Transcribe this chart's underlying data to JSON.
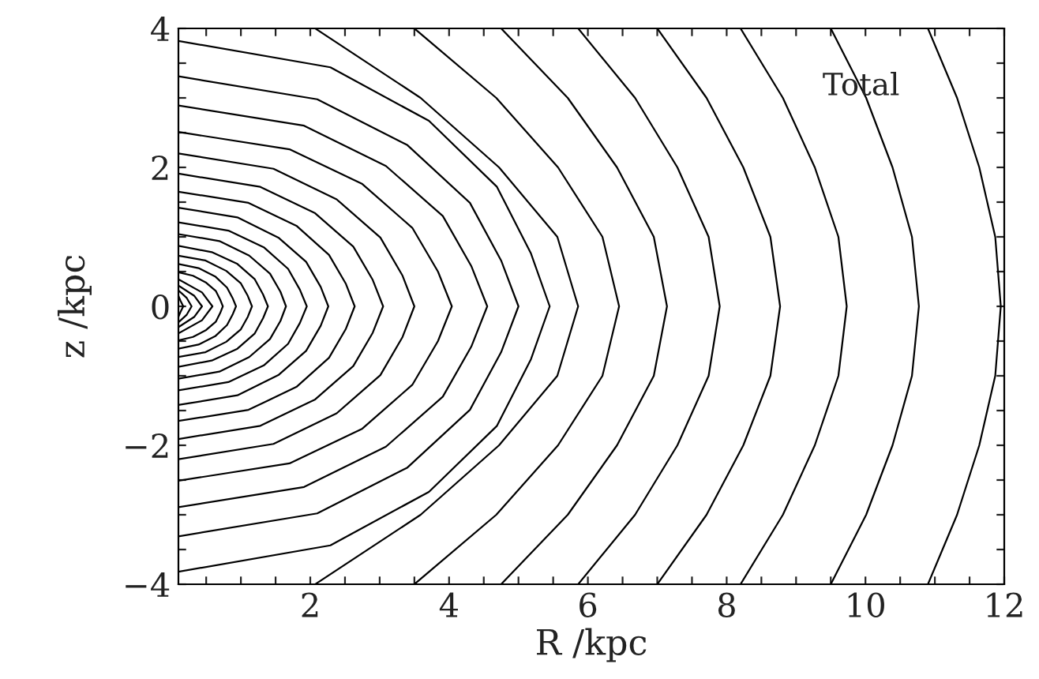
{
  "chart_data": {
    "type": "line",
    "xlabel": "R /kpc",
    "ylabel": "z /kpc",
    "annotations": [
      "Total"
    ],
    "xlim": [
      0.1,
      12
    ],
    "ylim": [
      -4,
      4
    ],
    "xticks": [
      {
        "value": 0.5,
        "label": null
      },
      {
        "value": 1,
        "label": null
      },
      {
        "value": 1.5,
        "label": null
      },
      2,
      {
        "value": 2.5,
        "label": null
      },
      {
        "value": 3,
        "label": null
      },
      {
        "value": 3.5,
        "label": null
      },
      4,
      {
        "value": 4.5,
        "label": null
      },
      {
        "value": 5,
        "label": null
      },
      {
        "value": 5.5,
        "label": null
      },
      6,
      {
        "value": 6.5,
        "label": null
      },
      {
        "value": 7,
        "label": null
      },
      {
        "value": 7.5,
        "label": null
      },
      8,
      {
        "value": 8.5,
        "label": null
      },
      {
        "value": 9,
        "label": null
      },
      {
        "value": 9.5,
        "label": null
      },
      10,
      {
        "value": 10.5,
        "label": null
      },
      {
        "value": 11,
        "label": null
      },
      {
        "value": 11.5,
        "label": null
      },
      12
    ],
    "yticks": [
      {
        "value": -4,
        "label": "−4"
      },
      {
        "value": -3.5,
        "label": null
      },
      {
        "value": -3,
        "label": null
      },
      {
        "value": -2.5,
        "label": null
      },
      {
        "value": -2,
        "label": "−2"
      },
      {
        "value": -1.5,
        "label": null
      },
      {
        "value": -1,
        "label": null
      },
      {
        "value": -0.5,
        "label": null
      },
      0,
      {
        "value": 0.5,
        "label": null
      },
      {
        "value": 1,
        "label": null
      },
      {
        "value": 1.5,
        "label": null
      },
      2,
      {
        "value": 2.5,
        "label": null
      },
      {
        "value": 3,
        "label": null
      },
      {
        "value": 3.5,
        "label": null
      },
      4
    ],
    "grid": false,
    "legend": false,
    "marker": "none",
    "line_style": "solid",
    "series": [
      {
        "color": "#000000",
        "x": [
          2.07,
          3.59,
          4.72,
          5.56,
          5.86,
          5.56,
          4.72,
          3.59,
          2.07
        ],
        "values": [
          4,
          3,
          2,
          1,
          0,
          -1,
          -2,
          -3,
          -4
        ]
      },
      {
        "color": "#000000",
        "x": [
          3.5,
          4.68,
          5.57,
          6.21,
          6.45,
          6.21,
          5.57,
          4.68,
          3.5
        ],
        "values": [
          4,
          3,
          2,
          1,
          0,
          -1,
          -2,
          -3,
          -4
        ]
      },
      {
        "color": "#000000",
        "x": [
          4.75,
          5.71,
          6.42,
          6.95,
          7.14,
          6.95,
          6.42,
          5.71,
          4.75
        ],
        "values": [
          4,
          3,
          2,
          1,
          0,
          -1,
          -2,
          -3,
          -4
        ]
      },
      {
        "color": "#000000",
        "x": [
          5.86,
          6.68,
          7.29,
          7.74,
          7.9,
          7.74,
          7.29,
          6.68,
          5.86
        ],
        "values": [
          4,
          3,
          2,
          1,
          0,
          -1,
          -2,
          -3,
          -4
        ]
      },
      {
        "color": "#000000",
        "x": [
          7.0,
          7.71,
          8.24,
          8.63,
          8.77,
          8.63,
          8.24,
          7.71,
          7.0
        ],
        "values": [
          4,
          3,
          2,
          1,
          0,
          -1,
          -2,
          -3,
          -4
        ]
      },
      {
        "color": "#000000",
        "x": [
          8.2,
          8.81,
          9.27,
          9.61,
          9.73,
          9.61,
          9.27,
          8.81,
          8.2
        ],
        "values": [
          4,
          3,
          2,
          1,
          0,
          -1,
          -2,
          -3,
          -4
        ]
      },
      {
        "color": "#000000",
        "x": [
          9.5,
          10.01,
          10.39,
          10.67,
          10.77,
          10.67,
          10.39,
          10.01,
          9.5
        ],
        "values": [
          4,
          3,
          2,
          1,
          0,
          -1,
          -2,
          -3,
          -4
        ]
      },
      {
        "color": "#000000",
        "x": [
          10.9,
          11.32,
          11.64,
          11.87,
          11.95,
          11.87,
          11.64,
          11.32,
          10.9
        ],
        "values": [
          4,
          3,
          2,
          1,
          0,
          -1,
          -2,
          -3,
          -4
        ]
      },
      {
        "color": "#000000",
        "x": [
          0.1,
          2.29,
          3.71,
          4.69,
          5.18,
          5.45,
          5.18,
          4.69,
          3.71,
          2.29,
          0.1
        ],
        "values": [
          3.82,
          3.44,
          2.67,
          1.72,
          0.76,
          0,
          -0.76,
          -1.72,
          -2.67,
          -3.44,
          -3.82
        ]
      },
      {
        "color": "#000000",
        "x": [
          0.1,
          2.1,
          3.4,
          4.3,
          4.75,
          5.0,
          4.75,
          4.3,
          3.4,
          2.1,
          0.1
        ],
        "values": [
          3.31,
          2.98,
          2.32,
          1.49,
          0.66,
          0,
          -0.66,
          -1.49,
          -2.32,
          -2.98,
          -3.31
        ]
      },
      {
        "color": "#000000",
        "x": [
          0.1,
          1.91,
          3.09,
          3.91,
          4.32,
          4.55,
          4.32,
          3.91,
          3.09,
          1.91,
          0.1
        ],
        "values": [
          2.89,
          2.6,
          2.02,
          1.3,
          0.58,
          0,
          -0.58,
          -1.3,
          -2.02,
          -2.6,
          -2.89
        ]
      },
      {
        "color": "#000000",
        "x": [
          0.1,
          1.7,
          2.75,
          3.47,
          3.84,
          4.04,
          3.84,
          3.47,
          2.75,
          1.7,
          0.1
        ],
        "values": [
          2.51,
          2.26,
          1.76,
          1.13,
          0.5,
          0,
          -0.5,
          -1.13,
          -1.76,
          -2.26,
          -2.51
        ]
      },
      {
        "color": "#000000",
        "x": [
          0.1,
          1.47,
          2.38,
          3.01,
          3.33,
          3.5,
          3.33,
          3.01,
          2.38,
          1.47,
          0.1
        ],
        "values": [
          2.2,
          1.98,
          1.54,
          0.99,
          0.44,
          0,
          -0.44,
          -0.99,
          -1.54,
          -1.98,
          -2.2
        ]
      },
      {
        "color": "#000000",
        "x": [
          0.1,
          1.28,
          2.07,
          2.62,
          2.9,
          3.05,
          2.9,
          2.62,
          2.07,
          1.28,
          0.1
        ],
        "values": [
          1.91,
          1.72,
          1.34,
          0.86,
          0.38,
          0,
          -0.38,
          -0.86,
          -1.34,
          -1.72,
          -1.91
        ]
      },
      {
        "color": "#000000",
        "x": [
          0.1,
          1.11,
          1.8,
          2.27,
          2.51,
          2.64,
          2.51,
          2.27,
          1.8,
          1.11,
          0.1
        ],
        "values": [
          1.65,
          1.49,
          1.16,
          0.74,
          0.33,
          0,
          -0.33,
          -0.74,
          -1.16,
          -1.49,
          -1.65
        ]
      },
      {
        "color": "#000000",
        "x": [
          0.1,
          0.95,
          1.54,
          1.94,
          2.15,
          2.26,
          2.15,
          1.94,
          1.54,
          0.95,
          0.1
        ],
        "values": [
          1.42,
          1.28,
          0.99,
          0.64,
          0.28,
          0,
          -0.28,
          -0.64,
          -0.99,
          -1.28,
          -1.42
        ]
      },
      {
        "color": "#000000",
        "x": [
          0.1,
          0.82,
          1.33,
          1.68,
          1.85,
          1.95,
          1.85,
          1.68,
          1.33,
          0.82,
          0.1
        ],
        "values": [
          1.21,
          1.09,
          0.85,
          0.54,
          0.24,
          0,
          -0.24,
          -0.54,
          -0.85,
          -1.09,
          -1.21
        ]
      },
      {
        "color": "#000000",
        "x": [
          0.1,
          0.69,
          1.12,
          1.42,
          1.57,
          1.65,
          1.57,
          1.42,
          1.12,
          0.69,
          0.1
        ],
        "values": [
          1.04,
          0.94,
          0.73,
          0.47,
          0.21,
          0,
          -0.21,
          -0.47,
          -0.73,
          -0.94,
          -1.04
        ]
      },
      {
        "color": "#000000",
        "x": [
          0.1,
          0.58,
          0.95,
          1.2,
          1.32,
          1.39,
          1.32,
          1.2,
          0.95,
          0.58,
          0.1
        ],
        "values": [
          0.87,
          0.78,
          0.61,
          0.39,
          0.17,
          0,
          -0.17,
          -0.39,
          -0.61,
          -0.78,
          -0.87
        ]
      },
      {
        "color": "#000000",
        "x": [
          0.1,
          0.49,
          0.79,
          1.0,
          1.1,
          1.16,
          1.1,
          1.0,
          0.79,
          0.49,
          0.1
        ],
        "values": [
          0.73,
          0.66,
          0.51,
          0.33,
          0.15,
          0,
          -0.15,
          -0.33,
          -0.51,
          -0.66,
          -0.73
        ]
      },
      {
        "color": "#000000",
        "x": [
          0.1,
          0.39,
          0.63,
          0.8,
          0.88,
          0.93,
          0.88,
          0.8,
          0.63,
          0.39,
          0.1
        ],
        "values": [
          0.61,
          0.55,
          0.43,
          0.27,
          0.12,
          0,
          -0.12,
          -0.27,
          -0.43,
          -0.55,
          -0.61
        ]
      },
      {
        "color": "#000000",
        "x": [
          0.1,
          0.31,
          0.5,
          0.64,
          0.7,
          0.74,
          0.7,
          0.64,
          0.5,
          0.31,
          0.1
        ],
        "values": [
          0.49,
          0.44,
          0.34,
          0.22,
          0.1,
          0,
          -0.1,
          -0.22,
          -0.34,
          -0.44,
          -0.49
        ]
      },
      {
        "color": "#000000",
        "x": [
          0.1,
          0.44,
          0.59,
          0.44,
          0.1
        ],
        "values": [
          0.39,
          0.2,
          0,
          -0.2,
          -0.39
        ]
      },
      {
        "color": "#000000",
        "x": [
          0.1,
          0.33,
          0.44,
          0.33,
          0.1
        ],
        "values": [
          0.3,
          0.15,
          0,
          -0.15,
          -0.3
        ]
      },
      {
        "color": "#000000",
        "x": [
          0.1,
          0.22,
          0.29,
          0.22,
          0.1
        ],
        "values": [
          0.23,
          0.12,
          0,
          -0.12,
          -0.23
        ]
      },
      {
        "color": "#000000",
        "x": [
          0.1,
          0.13,
          0.17,
          0.13,
          0.1
        ],
        "values": [
          0.15,
          0.08,
          0,
          -0.08,
          -0.15
        ]
      }
    ]
  }
}
